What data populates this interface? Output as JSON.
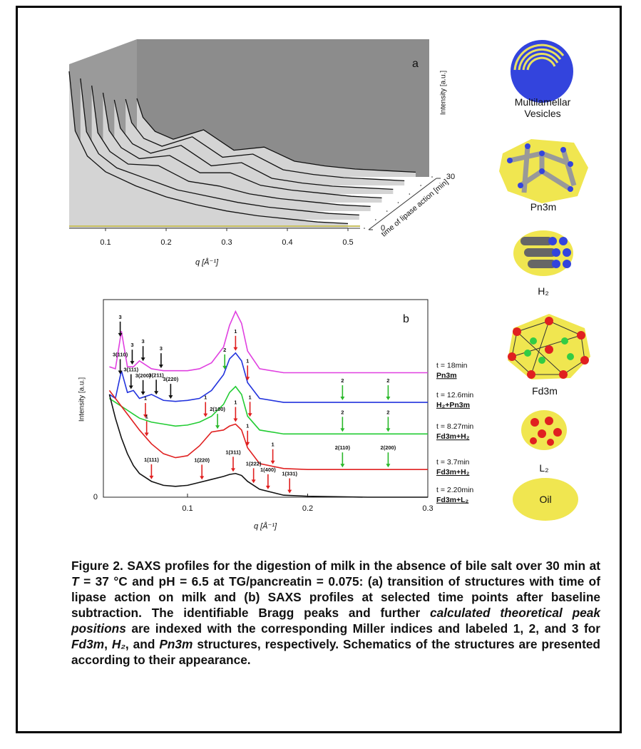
{
  "chart_data": [
    {
      "type": "waterfall",
      "label": "a",
      "xlabel": "q [Å⁻¹]",
      "ylabel": "Intensity [a.u.]",
      "zlabel": "time of lipase action [min]",
      "xlim": [
        0.04,
        0.52
      ],
      "xticks": [
        0.1,
        0.2,
        0.3,
        0.4,
        0.5
      ],
      "ylim": [
        0,
        10
      ],
      "zlim": [
        0,
        30
      ],
      "zticks": [
        0,
        30
      ],
      "color": "#111111",
      "fill": "#d4d4d4",
      "x": [
        0.04,
        0.05,
        0.07,
        0.1,
        0.15,
        0.2,
        0.25,
        0.3,
        0.35,
        0.4,
        0.45,
        0.5
      ],
      "series": [
        {
          "z": 0,
          "values": [
            10,
            6.2,
            4.6,
            3.6,
            2.7,
            2.0,
            1.5,
            1.1,
            0.8,
            0.6,
            0.4,
            0.3
          ]
        },
        {
          "z": 5,
          "values": [
            9,
            5.6,
            4.2,
            3.3,
            2.6,
            1.9,
            1.5,
            1.1,
            0.8,
            0.6,
            0.4,
            0.3
          ]
        },
        {
          "z": 10,
          "values": [
            8,
            5.0,
            3.8,
            3.0,
            2.9,
            1.9,
            1.6,
            1.1,
            0.8,
            0.6,
            0.4,
            0.3
          ]
        },
        {
          "z": 15,
          "values": [
            7,
            4.6,
            3.5,
            2.8,
            3.0,
            1.9,
            1.9,
            1.1,
            0.8,
            0.6,
            0.4,
            0.3
          ]
        },
        {
          "z": 20,
          "values": [
            6,
            4.2,
            3.2,
            2.6,
            3.1,
            1.8,
            2.0,
            1.0,
            0.7,
            0.5,
            0.4,
            0.3
          ]
        },
        {
          "z": 25,
          "values": [
            5.5,
            4,
            3,
            2.5,
            3.1,
            1.8,
            2.0,
            1.0,
            0.7,
            0.5,
            0.4,
            0.3
          ]
        },
        {
          "z": 30,
          "values": [
            5,
            3.8,
            2.9,
            2.4,
            3.0,
            1.7,
            1.9,
            1.0,
            0.7,
            0.5,
            0.4,
            0.3
          ]
        }
      ]
    },
    {
      "type": "line",
      "label": "b",
      "xlabel": "q [Å⁻¹]",
      "ylabel": "Intensity [a.u.]",
      "xlim": [
        0.03,
        0.3
      ],
      "xticks": [
        0.1,
        0.2,
        0.3
      ],
      "ylim": [
        0,
        10
      ],
      "yticks": [
        0
      ],
      "x": [
        0.035,
        0.04,
        0.045,
        0.05,
        0.055,
        0.06,
        0.07,
        0.08,
        0.09,
        0.1,
        0.11,
        0.12,
        0.13,
        0.135,
        0.14,
        0.145,
        0.15,
        0.16,
        0.18,
        0.2,
        0.25,
        0.3
      ],
      "series": [
        {
          "name": "t = 18min",
          "phase": "Pn3m",
          "color": "#e040e0",
          "values": [
            6.6,
            6.5,
            8.4,
            6.6,
            6.6,
            6.9,
            6.5,
            6.4,
            6.4,
            6.4,
            6.5,
            6.8,
            7.6,
            8.7,
            9.4,
            8.8,
            7.4,
            6.5,
            6.3,
            6.3,
            6.3,
            6.3
          ],
          "annotations": [
            {
              "text": "3",
              "x": 0.044
            },
            {
              "text": "3",
              "x": 0.054
            },
            {
              "text": "3",
              "x": 0.063
            },
            {
              "text": "3",
              "x": 0.078
            }
          ]
        },
        {
          "name": "t = 12.6min",
          "phase": "H₂+Pn3m",
          "color": "#2233dd",
          "values": [
            5.2,
            5.0,
            6.4,
            5.3,
            5.4,
            5.0,
            5.2,
            4.9,
            4.85,
            4.9,
            5.0,
            5.4,
            6.2,
            7.0,
            7.3,
            6.9,
            5.8,
            5.0,
            4.8,
            4.8,
            4.8,
            4.8
          ],
          "annotations": [
            {
              "text": "3(110)",
              "x": 0.044
            },
            {
              "text": "3(111)",
              "x": 0.053
            },
            {
              "text": "3(200)",
              "x": 0.063
            },
            {
              "text": "3(211)",
              "x": 0.074
            },
            {
              "text": "3(220)",
              "x": 0.086
            },
            {
              "text": "2",
              "x": 0.131
            },
            {
              "text": "1",
              "x": 0.14
            },
            {
              "text": "1",
              "x": 0.15
            },
            {
              "text": "2",
              "x": 0.229
            },
            {
              "text": "2",
              "x": 0.267
            }
          ]
        },
        {
          "name": "t = 8.27min",
          "phase": "Fd3m+H₂",
          "color": "#22cc33",
          "values": [
            5.0,
            4.8,
            4.6,
            4.4,
            4.2,
            4.0,
            3.8,
            3.7,
            3.6,
            3.65,
            3.8,
            4.1,
            4.7,
            5.3,
            5.6,
            5.2,
            4.1,
            3.4,
            3.2,
            3.2,
            3.2,
            3.2
          ],
          "annotations": [
            {
              "text": "1",
              "x": 0.065
            },
            {
              "text": "1",
              "x": 0.115
            },
            {
              "text": "1",
              "x": 0.152
            },
            {
              "text": "2",
              "x": 0.229
            },
            {
              "text": "2",
              "x": 0.267
            }
          ]
        },
        {
          "name": "t = 3.7min",
          "phase": "Fd3m+H₂",
          "color": "#e02020",
          "values": [
            5.4,
            5.0,
            4.6,
            4.2,
            3.8,
            3.4,
            2.7,
            2.2,
            2.0,
            2.1,
            2.6,
            3.3,
            3.4,
            3.6,
            3.7,
            3.4,
            2.5,
            1.7,
            1.45,
            1.4,
            1.4,
            1.4
          ],
          "annotations": [
            {
              "text": "1",
              "x": 0.066
            },
            {
              "text": "2(100)",
              "x": 0.125
            },
            {
              "text": "1",
              "x": 0.14
            },
            {
              "text": "1",
              "x": 0.15
            },
            {
              "text": "1",
              "x": 0.171
            },
            {
              "text": "2(110)",
              "x": 0.229
            },
            {
              "text": "2(200)",
              "x": 0.267
            }
          ]
        },
        {
          "name": "t = 2.20min",
          "phase": "Fd3m+L₂",
          "color": "#111111",
          "values": [
            5.2,
            4.0,
            3.0,
            2.2,
            1.6,
            1.2,
            0.8,
            0.6,
            0.55,
            0.6,
            0.75,
            0.9,
            1.05,
            1.15,
            1.2,
            1.1,
            0.8,
            0.4,
            0.1,
            0.05,
            0,
            0
          ],
          "annotations": [
            {
              "text": "1(111)",
              "x": 0.07
            },
            {
              "text": "1(220)",
              "x": 0.112
            },
            {
              "text": "1(311)",
              "x": 0.138
            },
            {
              "text": "1(222)",
              "x": 0.155
            },
            {
              "text": "1(400)",
              "x": 0.167
            },
            {
              "text": "1(331)",
              "x": 0.185
            }
          ]
        }
      ]
    }
  ],
  "schematics": [
    "Multilamellar Vesicles",
    "Pn3m",
    "H₂",
    "Fd3m",
    "L₂",
    "Oil"
  ],
  "caption": [
    {
      "text": "Figure 2. SAXS profiles for the digestion of milk in the absence of bile salt over 30 min at ",
      "style": "normal"
    },
    {
      "text": "T",
      "style": "italic"
    },
    {
      "text": " = 37 °C and pH = 6.5 at TG/pancreatin = 0.075: (a) transition of structures with time of lipase action on milk and (b) SAXS profiles at selected time points after baseline subtraction. The identifiable Bragg peaks and further ",
      "style": "normal"
    },
    {
      "text": "calculated theoretical peak positions",
      "style": "italic"
    },
    {
      "text": " are indexed with the corresponding Miller indices and labeled 1, 2, and 3 for ",
      "style": "normal"
    },
    {
      "text": "Fd3m",
      "style": "italic"
    },
    {
      "text": ", ",
      "style": "normal"
    },
    {
      "text": "H₂",
      "style": "italic"
    },
    {
      "text": ", and ",
      "style": "normal"
    },
    {
      "text": "Pn3m",
      "style": "italic"
    },
    {
      "text": " structures, respectively. Schematics of the structures are presented according to their appearance.",
      "style": "normal"
    }
  ]
}
